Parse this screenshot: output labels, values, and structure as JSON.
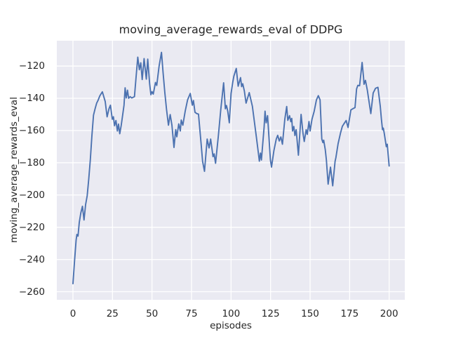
{
  "title": "moving_average_rewards_eval of DDPG",
  "xlabel": "episodes",
  "ylabel": "moving_average_rewards_eval",
  "colors": {
    "figure_bg": "#ffffff",
    "plot_bg": "#eaeaf2",
    "grid": "#ffffff",
    "text": "#262626",
    "line": "#4c72b0"
  },
  "chart_data": {
    "type": "line",
    "title": "moving_average_rewards_eval of DDPG",
    "xlabel": "episodes",
    "ylabel": "moving_average_rewards_eval",
    "xlim": [
      -10.2,
      209.9
    ],
    "ylim": [
      -265,
      -104.3
    ],
    "xticks": [
      0,
      25,
      50,
      75,
      100,
      125,
      150,
      175,
      200
    ],
    "yticks": [
      -120,
      -140,
      -160,
      -180,
      -200,
      -220,
      -240,
      -260
    ],
    "grid": true,
    "legend": null,
    "series": [
      {
        "name": "moving_average_rewards_eval",
        "color": "#4c72b0",
        "points": [
          [
            0,
            -255
          ],
          [
            1,
            -241
          ],
          [
            2,
            -228
          ],
          [
            2.5,
            -224.5
          ],
          [
            3.2,
            -225.5
          ],
          [
            4,
            -217
          ],
          [
            5,
            -211
          ],
          [
            6,
            -207
          ],
          [
            7,
            -215.5
          ],
          [
            8,
            -206
          ],
          [
            9,
            -200.5
          ],
          [
            10,
            -190
          ],
          [
            11,
            -178
          ],
          [
            12,
            -163
          ],
          [
            13,
            -150.5
          ],
          [
            14,
            -146.5
          ],
          [
            15,
            -143
          ],
          [
            16,
            -141
          ],
          [
            17,
            -138.5
          ],
          [
            18.6,
            -136
          ],
          [
            19.5,
            -139
          ],
          [
            20.4,
            -142
          ],
          [
            21.6,
            -151.5
          ],
          [
            22.8,
            -146.5
          ],
          [
            23.7,
            -144.3
          ],
          [
            24.9,
            -153
          ],
          [
            25.6,
            -151.5
          ],
          [
            26.3,
            -157
          ],
          [
            27.2,
            -153.8
          ],
          [
            28.1,
            -160.3
          ],
          [
            28.8,
            -156
          ],
          [
            29.6,
            -162
          ],
          [
            30.5,
            -157
          ],
          [
            31.5,
            -150
          ],
          [
            32.3,
            -144.3
          ],
          [
            33,
            -133.5
          ],
          [
            33.7,
            -139.8
          ],
          [
            34.5,
            -135
          ],
          [
            35.2,
            -140
          ],
          [
            36.2,
            -139
          ],
          [
            37.2,
            -139.8
          ],
          [
            38.9,
            -139
          ],
          [
            40,
            -126
          ],
          [
            41,
            -114.5
          ],
          [
            42,
            -122.3
          ],
          [
            42.9,
            -118
          ],
          [
            43.8,
            -128.4
          ],
          [
            45,
            -115.4
          ],
          [
            46.4,
            -128.1
          ],
          [
            47.3,
            -115.7
          ],
          [
            48.5,
            -131
          ],
          [
            49.3,
            -137.8
          ],
          [
            50,
            -135.9
          ],
          [
            50.8,
            -137.4
          ],
          [
            52.2,
            -130.2
          ],
          [
            53,
            -132
          ],
          [
            54.5,
            -120
          ],
          [
            56,
            -111.5
          ],
          [
            57,
            -124
          ],
          [
            58.1,
            -136.4
          ],
          [
            59.2,
            -147
          ],
          [
            60.4,
            -156.7
          ],
          [
            61.5,
            -150.1
          ],
          [
            62.6,
            -156.7
          ],
          [
            63.9,
            -170.5
          ],
          [
            65,
            -159.5
          ],
          [
            65.7,
            -163.9
          ],
          [
            66.9,
            -155.9
          ],
          [
            67.9,
            -160.3
          ],
          [
            68.5,
            -153.5
          ],
          [
            69.5,
            -156.7
          ],
          [
            71,
            -148
          ],
          [
            72.5,
            -141
          ],
          [
            74.2,
            -137
          ],
          [
            75.5,
            -144.3
          ],
          [
            76.2,
            -141.4
          ],
          [
            77.2,
            -148.7
          ],
          [
            78.3,
            -149.5
          ],
          [
            79.4,
            -149.8
          ],
          [
            81,
            -167.5
          ],
          [
            82,
            -179.1
          ],
          [
            83.2,
            -185.3
          ],
          [
            84.9,
            -165.3
          ],
          [
            86.1,
            -170.8
          ],
          [
            87.1,
            -165.3
          ],
          [
            88.6,
            -176.2
          ],
          [
            89.3,
            -174.5
          ],
          [
            90.2,
            -180.3
          ],
          [
            92,
            -163
          ],
          [
            93.5,
            -147
          ],
          [
            95.3,
            -130.4
          ],
          [
            96.4,
            -146.5
          ],
          [
            97.1,
            -144.5
          ],
          [
            97.9,
            -147.9
          ],
          [
            98.9,
            -155.2
          ],
          [
            100,
            -137.1
          ],
          [
            101.1,
            -129.9
          ],
          [
            101.8,
            -126.2
          ],
          [
            103.3,
            -121.5
          ],
          [
            104.5,
            -132.5
          ],
          [
            106,
            -127.2
          ],
          [
            106.7,
            -132.8
          ],
          [
            107.4,
            -131
          ],
          [
            108.4,
            -135.4
          ],
          [
            109.5,
            -143
          ],
          [
            111.5,
            -136.5
          ],
          [
            113.5,
            -145
          ],
          [
            116,
            -163.9
          ],
          [
            117.1,
            -172.5
          ],
          [
            117.9,
            -179
          ],
          [
            118.6,
            -174
          ],
          [
            119.2,
            -178.3
          ],
          [
            120.9,
            -158
          ],
          [
            121.5,
            -148
          ],
          [
            122.2,
            -155.2
          ],
          [
            123.1,
            -150.8
          ],
          [
            124.9,
            -178.3
          ],
          [
            125.6,
            -182.7
          ],
          [
            127.1,
            -172.5
          ],
          [
            128.6,
            -165.3
          ],
          [
            129.5,
            -163
          ],
          [
            130.5,
            -166.5
          ],
          [
            131.5,
            -164
          ],
          [
            132.5,
            -168.5
          ],
          [
            134,
            -153
          ],
          [
            135.2,
            -145.1
          ],
          [
            135.9,
            -153.7
          ],
          [
            137,
            -150.8
          ],
          [
            137.8,
            -154.5
          ],
          [
            138.4,
            -152.5
          ],
          [
            138.9,
            -160.3
          ],
          [
            139.7,
            -157.5
          ],
          [
            140.4,
            -163.1
          ],
          [
            141.2,
            -159.5
          ],
          [
            142.6,
            -175.3
          ],
          [
            144.3,
            -150
          ],
          [
            145.5,
            -161.7
          ],
          [
            146.3,
            -166.8
          ],
          [
            147.5,
            -159.5
          ],
          [
            148.2,
            -162.4
          ],
          [
            149.3,
            -154.4
          ],
          [
            150,
            -160.3
          ],
          [
            151.2,
            -153
          ],
          [
            152.6,
            -148
          ],
          [
            154,
            -141
          ],
          [
            155.2,
            -138.4
          ],
          [
            156.3,
            -141
          ],
          [
            157.4,
            -165.3
          ],
          [
            158.1,
            -167.5
          ],
          [
            158.6,
            -166
          ],
          [
            159.6,
            -171.9
          ],
          [
            160.3,
            -178.3
          ],
          [
            161.4,
            -193.3
          ],
          [
            162.9,
            -182.7
          ],
          [
            164.3,
            -194.3
          ],
          [
            165.8,
            -179.1
          ],
          [
            166.3,
            -176.9
          ],
          [
            167.7,
            -168.2
          ],
          [
            169.2,
            -161.7
          ],
          [
            170.4,
            -157.4
          ],
          [
            171.3,
            -156
          ],
          [
            172.8,
            -153.8
          ],
          [
            174,
            -158.1
          ],
          [
            175.8,
            -147.2
          ],
          [
            177,
            -146.5
          ],
          [
            178.4,
            -145.8
          ],
          [
            179.4,
            -134.2
          ],
          [
            180.2,
            -132
          ],
          [
            181.3,
            -132.2
          ],
          [
            182.9,
            -117.8
          ],
          [
            183.8,
            -127
          ],
          [
            184.1,
            -131.3
          ],
          [
            185,
            -128.9
          ],
          [
            186.2,
            -135
          ],
          [
            188.4,
            -149.5
          ],
          [
            189.9,
            -136.7
          ],
          [
            191.4,
            -133.8
          ],
          [
            192.9,
            -133.2
          ],
          [
            194.4,
            -145.1
          ],
          [
            195.1,
            -153
          ],
          [
            195.8,
            -159.5
          ],
          [
            196.3,
            -158.5
          ],
          [
            196.9,
            -161.7
          ],
          [
            198.2,
            -170
          ],
          [
            198.8,
            -168.5
          ],
          [
            200,
            -182
          ]
        ]
      }
    ]
  }
}
